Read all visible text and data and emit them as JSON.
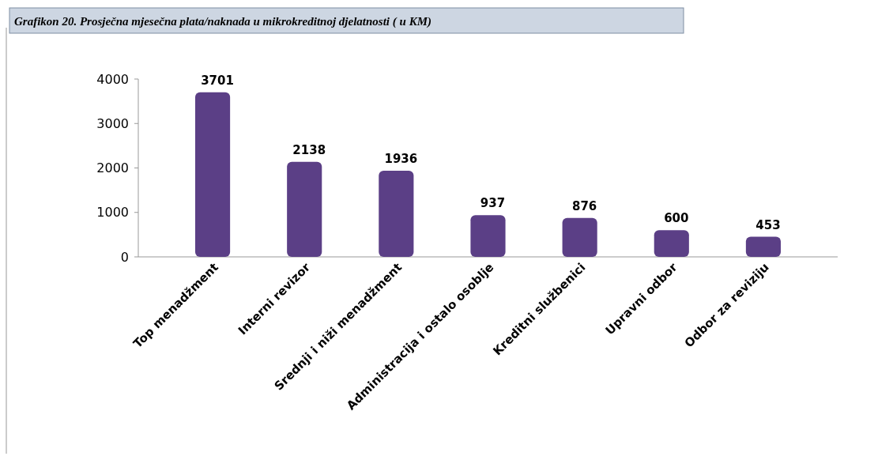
{
  "chart_data": {
    "type": "bar",
    "title": "Grafikon 20. Prosječna mjesečna plata/naknada u mikrokreditnoj djelatnosti ( u KM)",
    "categories": [
      "Top menadžment",
      "Interni revizor",
      "Srednji i niži menadžment",
      "Administracija i ostalo osoblje",
      "Kreditni službenici",
      "Upravni odbor",
      "Odbor za reviziju"
    ],
    "values": [
      3701,
      2138,
      1936,
      937,
      876,
      600,
      453
    ],
    "color": "#5b3f86",
    "ylim": [
      0,
      4000
    ],
    "yticks": [
      0,
      1000,
      2000,
      3000,
      4000
    ],
    "data_labels": true,
    "grid": false
  }
}
